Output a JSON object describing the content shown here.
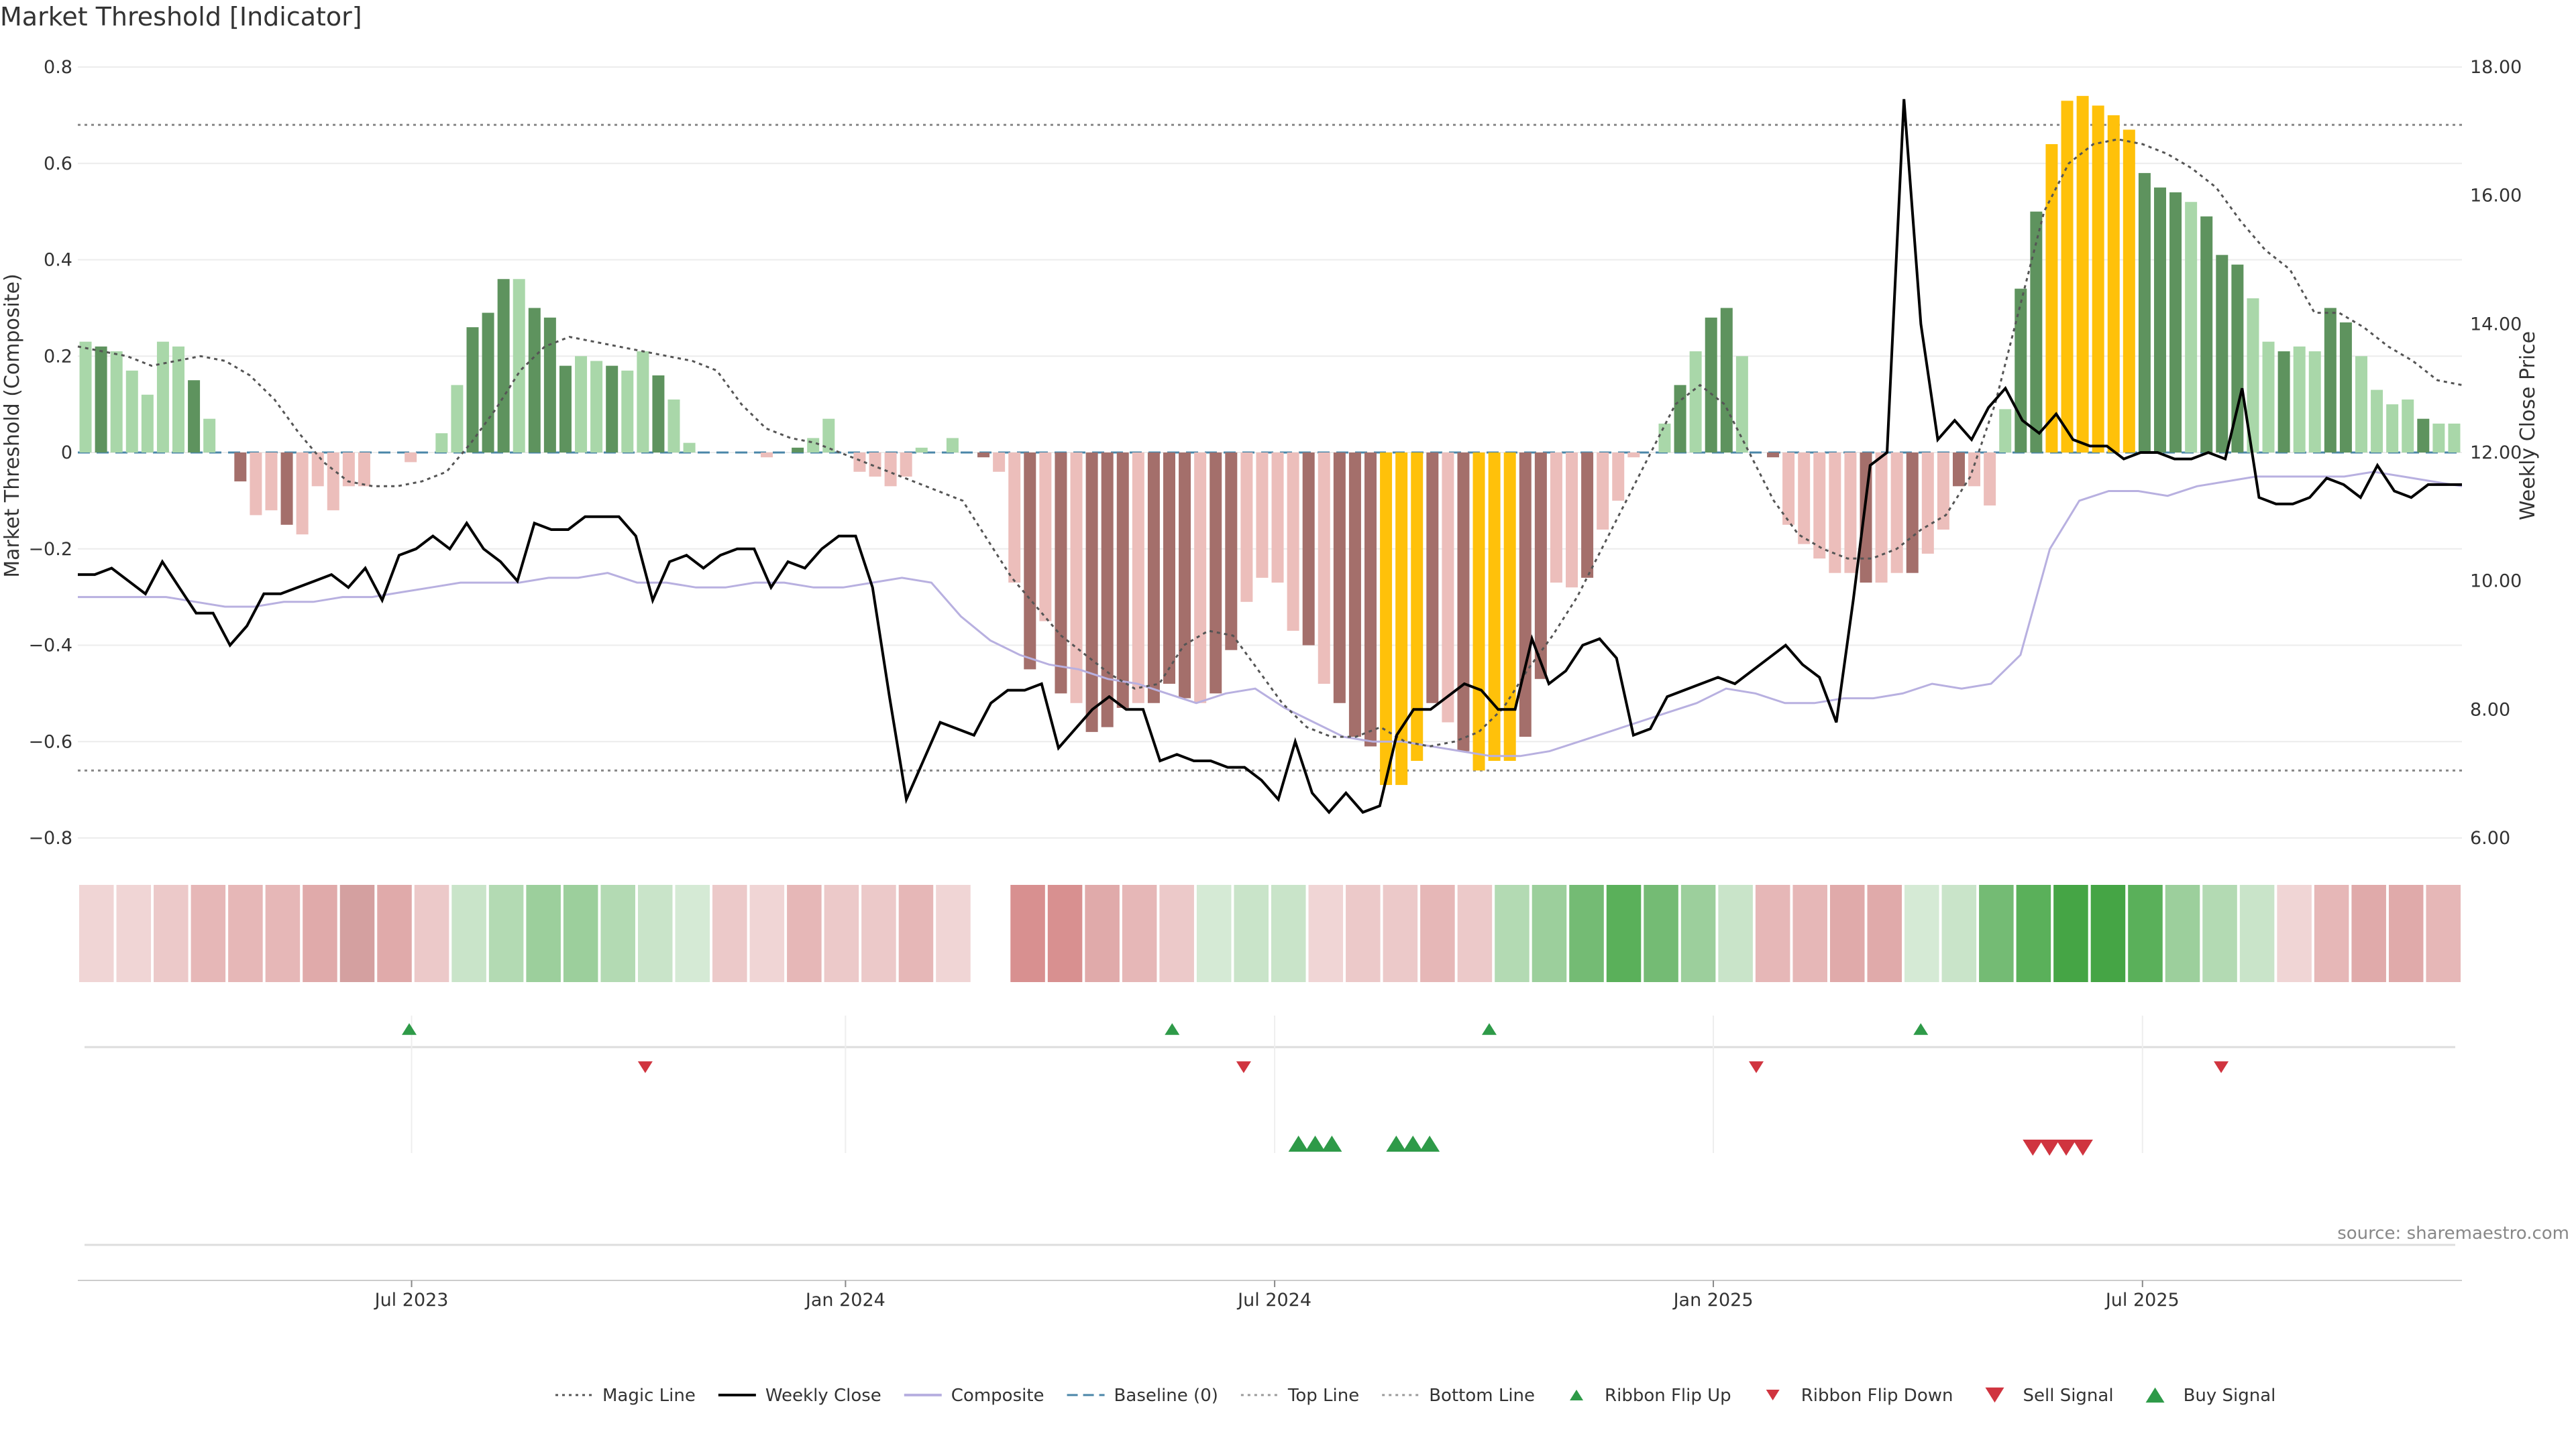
{
  "chart_data": {
    "type": "bar",
    "title": "Market Threshold [Indicator]",
    "ylabel": "Market Threshold (Composite)",
    "ylabel_right": "Weekly Close Price",
    "ylim": [
      -0.8,
      0.8
    ],
    "ylim_right": [
      6,
      18
    ],
    "yticks": [
      "0.8",
      "0.6",
      "0.4",
      "0.2",
      "0",
      "−0.2",
      "−0.4",
      "−0.6",
      "−0.8"
    ],
    "yticks_right": [
      "18.00",
      "16.00",
      "14.00",
      "12.00",
      "10.00",
      "8.00",
      "6.00"
    ],
    "xticks": [
      "Jul 2023",
      "Jan 2024",
      "Jul 2024",
      "Jan 2025",
      "Jul 2025"
    ],
    "top_line": 0.68,
    "bottom_line": -0.66,
    "source": "source: sharemaestro.com",
    "composite": [
      0.23,
      0.22,
      0.21,
      0.17,
      0.12,
      0.23,
      0.22,
      0.15,
      0.07,
      0,
      -0.06,
      -0.13,
      -0.12,
      -0.15,
      -0.17,
      -0.07,
      -0.12,
      -0.07,
      -0.07,
      0,
      0,
      -0.02,
      0,
      0.04,
      0.14,
      0.26,
      0.29,
      0.36,
      0.36,
      0.3,
      0.28,
      0.18,
      0.2,
      0.19,
      0.18,
      0.17,
      0.21,
      0.16,
      0.11,
      0.02,
      0,
      0,
      0,
      0,
      -0.01,
      0,
      0.01,
      0.03,
      0.07,
      0,
      -0.04,
      -0.05,
      -0.07,
      -0.05,
      0.01,
      0,
      0.03,
      0,
      -0.01,
      -0.04,
      -0.27,
      -0.45,
      -0.35,
      -0.5,
      -0.52,
      -0.58,
      -0.57,
      -0.53,
      -0.52,
      -0.52,
      -0.48,
      -0.51,
      -0.52,
      -0.5,
      -0.41,
      -0.31,
      -0.26,
      -0.27,
      -0.37,
      -0.4,
      -0.48,
      -0.52,
      -0.59,
      -0.61,
      -0.69,
      -0.69,
      -0.64,
      -0.52,
      -0.56,
      -0.62,
      -0.66,
      -0.64,
      -0.64,
      -0.59,
      -0.47,
      -0.27,
      -0.28,
      -0.26,
      -0.16,
      -0.1,
      -0.01,
      0,
      0.06,
      0.14,
      0.21,
      0.28,
      0.3,
      0.2,
      0,
      -0.01,
      -0.15,
      -0.19,
      -0.22,
      -0.25,
      -0.25,
      -0.27,
      -0.27,
      -0.25,
      -0.25,
      -0.21,
      -0.16,
      -0.07,
      -0.07,
      -0.11,
      0.09,
      0.34,
      0.5,
      0.64,
      0.73,
      0.74,
      0.72,
      0.7,
      0.67,
      0.58,
      0.55,
      0.54,
      0.52,
      0.49,
      0.41,
      0.39,
      0.32,
      0.23,
      0.21,
      0.22,
      0.21,
      0.3,
      0.27,
      0.2,
      0.13,
      0.1,
      0.11,
      0.07,
      0.06,
      0.06
    ],
    "colors": {
      "dark_green": "#5e935e",
      "light_green": "#a9d7a9",
      "dark_red": "#a46f6b",
      "light_red": "#ecbebb",
      "yellow": "#ffc10a",
      "close_line": "#000000",
      "composite_line": "#b8b0e0",
      "magic_line": "#555555",
      "baseline": "#4a86a8",
      "buy": "#2e9a48",
      "sell": "#d0343f"
    },
    "weekly_close": [
      10.1,
      10.1,
      10.2,
      10.0,
      9.8,
      10.3,
      9.9,
      9.5,
      9.5,
      9.0,
      9.3,
      9.8,
      9.8,
      9.9,
      10.0,
      10.1,
      9.9,
      10.2,
      9.7,
      10.4,
      10.5,
      10.7,
      10.5,
      10.9,
      10.5,
      10.3,
      10.0,
      10.9,
      10.8,
      10.8,
      11.0,
      11.0,
      11.0,
      10.7,
      9.7,
      10.3,
      10.4,
      10.2,
      10.4,
      10.5,
      10.5,
      9.9,
      10.3,
      10.2,
      10.5,
      10.7,
      10.7,
      9.9,
      8.2,
      6.6,
      7.2,
      7.8,
      7.7,
      7.6,
      8.1,
      8.3,
      8.3,
      8.4,
      7.4,
      7.7,
      8.0,
      8.2,
      8.0,
      8.0,
      7.2,
      7.3,
      7.2,
      7.2,
      7.1,
      7.1,
      6.9,
      6.6,
      7.5,
      6.7,
      6.4,
      6.7,
      6.4,
      6.5,
      7.6,
      8.0,
      8.0,
      8.2,
      8.4,
      8.3,
      8.0,
      8.0,
      9.1,
      8.4,
      8.6,
      9.0,
      9.1,
      8.8,
      7.6,
      7.7,
      8.2,
      8.3,
      8.4,
      8.5,
      8.4,
      8.6,
      8.8,
      9.0,
      8.7,
      8.5,
      7.8,
      9.7,
      11.8,
      12.0,
      17.5,
      14.0,
      12.2,
      12.5,
      12.2,
      12.7,
      13.0,
      12.5,
      12.3,
      12.6,
      12.2,
      12.1,
      12.1,
      11.9,
      12.0,
      12.0,
      11.9,
      11.9,
      12.0,
      11.9,
      13.0,
      11.3,
      11.2,
      11.2,
      11.3,
      11.6,
      11.5,
      11.3,
      11.8,
      11.4,
      11.3,
      11.5,
      11.5,
      11.5
    ],
    "composite_line": [
      -0.3,
      -0.3,
      -0.3,
      -0.3,
      -0.31,
      -0.32,
      -0.32,
      -0.31,
      -0.31,
      -0.3,
      -0.3,
      -0.29,
      -0.28,
      -0.27,
      -0.27,
      -0.27,
      -0.26,
      -0.26,
      -0.25,
      -0.27,
      -0.27,
      -0.28,
      -0.28,
      -0.27,
      -0.27,
      -0.28,
      -0.28,
      -0.27,
      -0.26,
      -0.27,
      -0.34,
      -0.39,
      -0.42,
      -0.44,
      -0.45,
      -0.47,
      -0.48,
      -0.5,
      -0.52,
      -0.5,
      -0.49,
      -0.53,
      -0.56,
      -0.59,
      -0.6,
      -0.6,
      -0.61,
      -0.62,
      -0.63,
      -0.63,
      -0.62,
      -0.6,
      -0.58,
      -0.56,
      -0.54,
      -0.52,
      -0.49,
      -0.5,
      -0.52,
      -0.52,
      -0.51,
      -0.51,
      -0.5,
      -0.48,
      -0.49,
      -0.48,
      -0.42,
      -0.2,
      -0.1,
      -0.08,
      -0.08,
      -0.09,
      -0.07,
      -0.06,
      -0.05,
      -0.05,
      -0.05,
      -0.05,
      -0.04,
      -0.05,
      -0.06,
      -0.07
    ],
    "magic_line": [
      0.22,
      0.21,
      0.2,
      0.18,
      0.19,
      0.2,
      0.19,
      0.16,
      0.11,
      0.04,
      -0.02,
      -0.06,
      -0.07,
      -0.07,
      -0.06,
      -0.04,
      0.02,
      0.09,
      0.17,
      0.22,
      0.24,
      0.23,
      0.22,
      0.21,
      0.2,
      0.19,
      0.17,
      0.1,
      0.05,
      0.03,
      0.02,
      0.0,
      -0.02,
      -0.04,
      -0.06,
      -0.08,
      -0.1,
      -0.18,
      -0.26,
      -0.32,
      -0.38,
      -0.42,
      -0.46,
      -0.49,
      -0.48,
      -0.4,
      -0.37,
      -0.38,
      -0.45,
      -0.52,
      -0.57,
      -0.59,
      -0.59,
      -0.57,
      -0.6,
      -0.61,
      -0.6,
      -0.58,
      -0.53,
      -0.45,
      -0.38,
      -0.3,
      -0.2,
      -0.1,
      0.0,
      0.1,
      0.14,
      0.1,
      0.0,
      -0.1,
      -0.17,
      -0.2,
      -0.22,
      -0.22,
      -0.2,
      -0.16,
      -0.13,
      -0.05,
      0.1,
      0.3,
      0.5,
      0.6,
      0.64,
      0.65,
      0.64,
      0.62,
      0.59,
      0.55,
      0.48,
      0.42,
      0.38,
      0.29,
      0.29,
      0.26,
      0.22,
      0.19,
      0.15,
      0.14
    ],
    "ribbon": [
      "#f0d5d5",
      "#f0d5d5",
      "#ecc9c9",
      "#e6b7b7",
      "#e6b7b7",
      "#e6b7b7",
      "#e0aaaa",
      "#d4a0a0",
      "#e0aaaa",
      "#ecc9c9",
      "#c9e4c9",
      "#b3dab3",
      "#9ccf9c",
      "#9ccf9c",
      "#b3dab3",
      "#c9e4c9",
      "#d5ead5",
      "#ecc9c9",
      "#f0d5d5",
      "#e6b7b7",
      "#ecc9c9",
      "#ecc9c9",
      "#e6b7b7",
      "#f0d5d5",
      "#ffffff",
      "#d89090",
      "#d89090",
      "#e0aaaa",
      "#e6b7b7",
      "#ecc9c9",
      "#d5ead5",
      "#c9e4c9",
      "#c9e4c9",
      "#f0d5d5",
      "#ecc9c9",
      "#ecc9c9",
      "#e6b7b7",
      "#ecc9c9",
      "#b3dab3",
      "#9ccf9c",
      "#74bb74",
      "#5ab05a",
      "#74bb74",
      "#9ccf9c",
      "#c9e4c9",
      "#e6b7b7",
      "#e6b7b7",
      "#e0aaaa",
      "#e0aaaa",
      "#d5ead5",
      "#c9e4c9",
      "#74bb74",
      "#5ab05a",
      "#45a545",
      "#45a545",
      "#5ab05a",
      "#9ccf9c",
      "#b3dab3",
      "#c9e4c9",
      "#f0d5d5",
      "#e6b7b7",
      "#e0aaaa",
      "#e0aaaa",
      "#e6b7b7"
    ],
    "flip_up": [
      0.139,
      0.459,
      0.592,
      0.773
    ],
    "flip_down": [
      0.238,
      0.489,
      0.704,
      0.899
    ],
    "buy_signals": [
      0.512,
      0.519,
      0.526,
      0.553,
      0.56,
      0.567
    ],
    "sell_signals": [
      0.82,
      0.827,
      0.834,
      0.841
    ],
    "legend": [
      {
        "label": "Magic Line",
        "kind": "dotted",
        "color": "#555555"
      },
      {
        "label": "Weekly Close",
        "kind": "solid",
        "color": "#000000"
      },
      {
        "label": "Composite",
        "kind": "solid",
        "color": "#b8b0e0"
      },
      {
        "label": "Baseline (0)",
        "kind": "dashed",
        "color": "#4a86a8"
      },
      {
        "label": "Top Line",
        "kind": "dotted",
        "color": "#999999"
      },
      {
        "label": "Bottom Line",
        "kind": "dotted",
        "color": "#999999"
      },
      {
        "label": "Ribbon Flip Up",
        "kind": "tri-up-small",
        "color": "#2e9a48"
      },
      {
        "label": "Ribbon Flip Down",
        "kind": "tri-down-small",
        "color": "#d0343f"
      },
      {
        "label": "Sell Signal",
        "kind": "tri-down",
        "color": "#d0343f"
      },
      {
        "label": "Buy Signal",
        "kind": "tri-up",
        "color": "#2e9a48"
      }
    ]
  }
}
